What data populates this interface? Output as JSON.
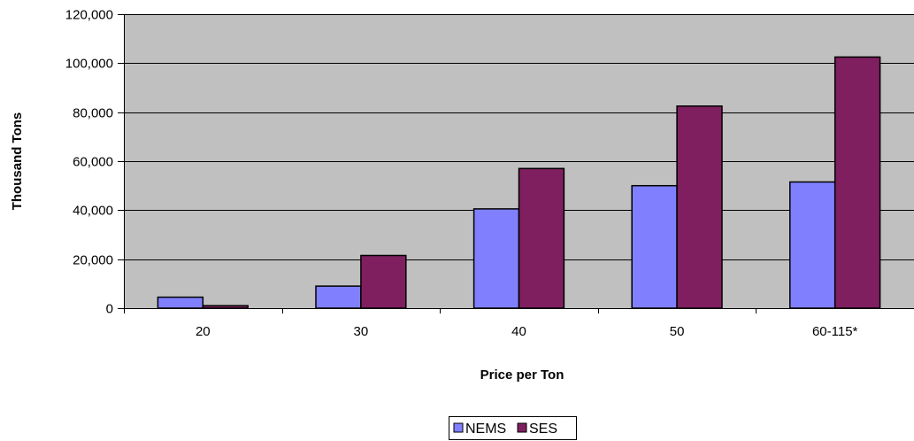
{
  "chart_data": {
    "type": "bar",
    "title": "",
    "xlabel": "Price per Ton",
    "ylabel": "Thousand Tons",
    "categories": [
      "20",
      "30",
      "40",
      "50",
      "60-115*"
    ],
    "series": [
      {
        "name": "NEMS",
        "values": [
          4500,
          9000,
          40500,
          50000,
          51500
        ],
        "color": "#8080FF"
      },
      {
        "name": "SES",
        "values": [
          1000,
          21500,
          57000,
          82500,
          102500
        ],
        "color": "#7F1F5F"
      }
    ],
    "ylim": [
      0,
      120000
    ],
    "yticks": [
      0,
      20000,
      40000,
      60000,
      80000,
      100000,
      120000
    ],
    "ytick_labels": [
      "0",
      "20,000",
      "40,000",
      "60,000",
      "80,000",
      "100,000",
      "120,000"
    ],
    "grid": true,
    "plot_background": "#C0C0C0",
    "legend_position": "bottom"
  }
}
